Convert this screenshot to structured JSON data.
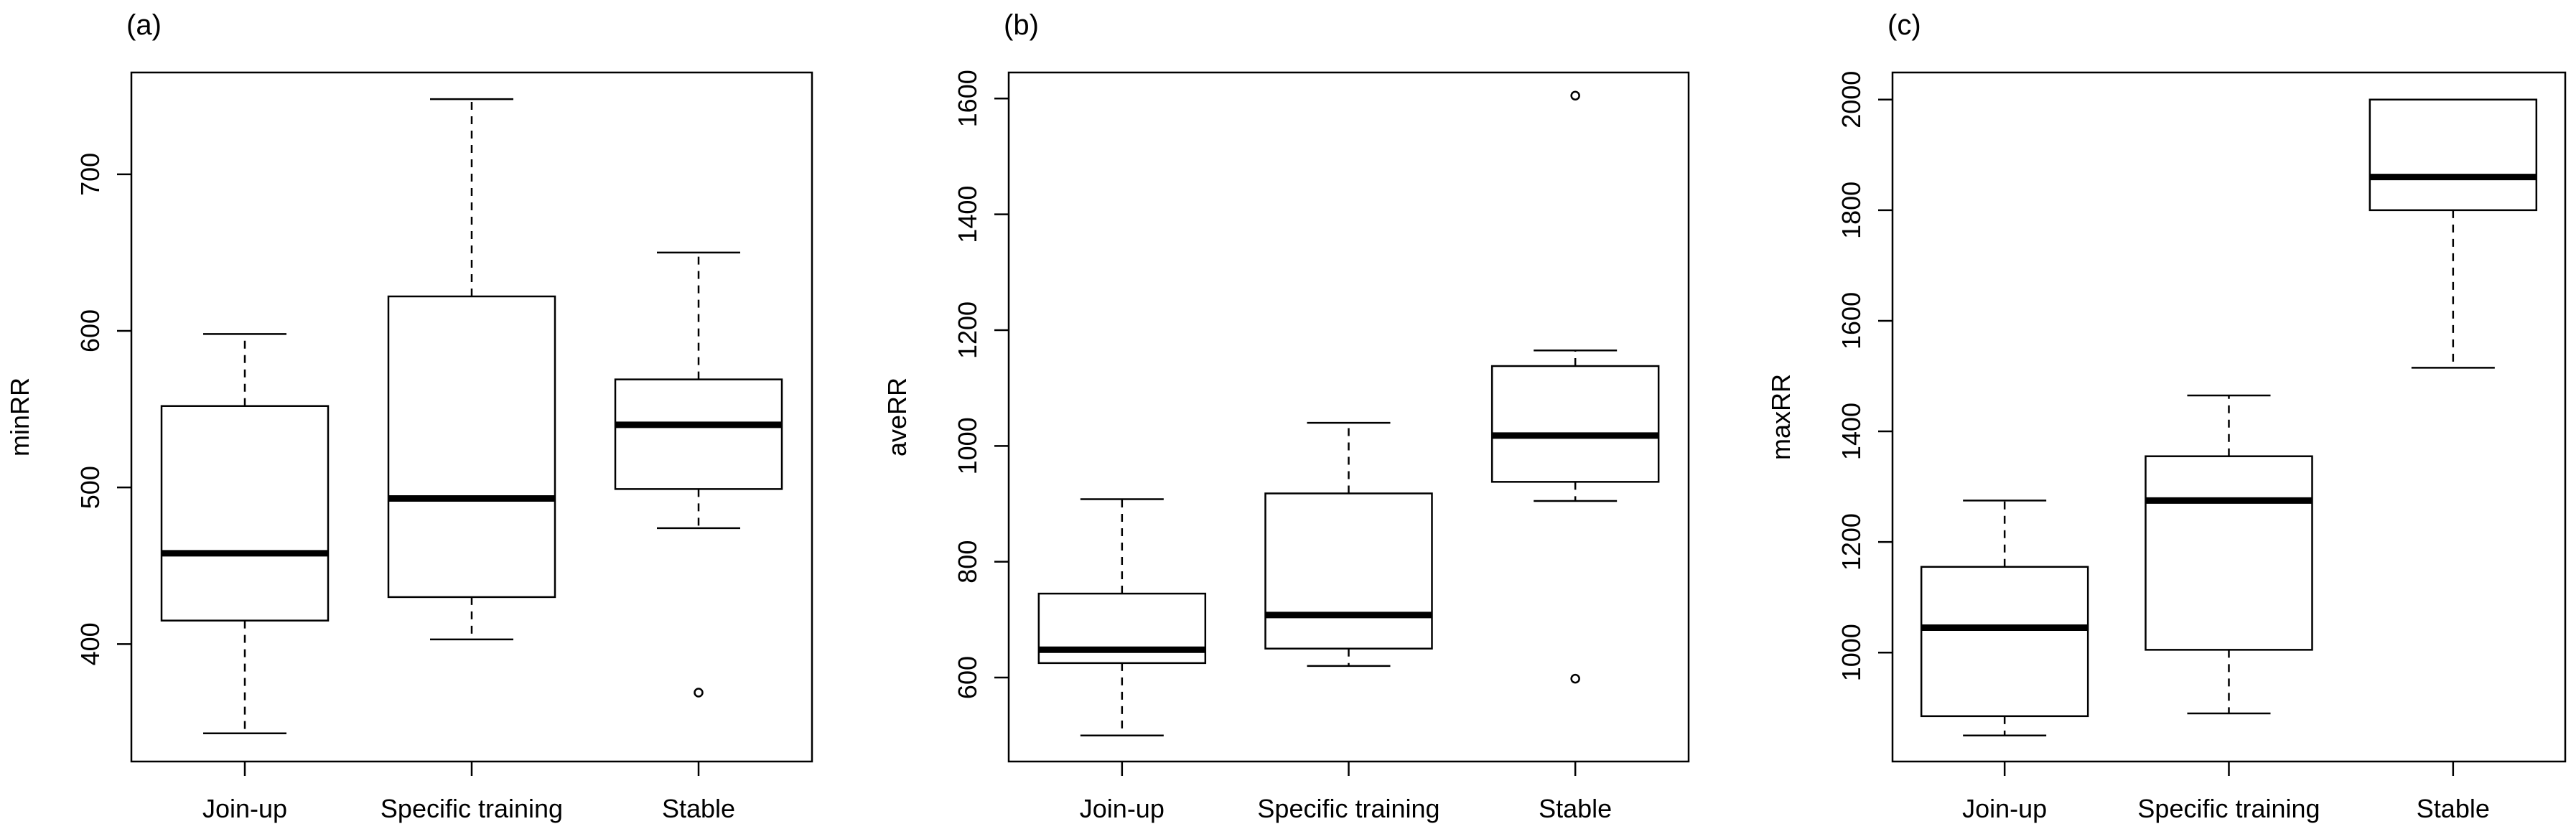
{
  "chart_data": [
    {
      "type": "boxplot",
      "panel_label": "(a)",
      "ylabel": "minRR",
      "xlabel": "",
      "categories": [
        "Join-up",
        "Specific training",
        "Stable"
      ],
      "ylim": [
        325,
        765
      ],
      "yticks": [
        400,
        500,
        600,
        700
      ],
      "boxes": [
        {
          "category": "Join-up",
          "whisker_low": 343,
          "q1": 415,
          "median": 458,
          "q3": 552,
          "whisker_high": 598,
          "outliers": []
        },
        {
          "category": "Specific training",
          "whisker_low": 403,
          "q1": 430,
          "median": 493,
          "q3": 622,
          "whisker_high": 748,
          "outliers": []
        },
        {
          "category": "Stable",
          "whisker_low": 474,
          "q1": 499,
          "median": 540,
          "q3": 569,
          "whisker_high": 650,
          "outliers": [
            369
          ]
        }
      ]
    },
    {
      "type": "boxplot",
      "panel_label": "(b)",
      "ylabel": "aveRR",
      "xlabel": "",
      "categories": [
        "Join-up",
        "Specific training",
        "Stable"
      ],
      "ylim": [
        455,
        1645
      ],
      "yticks": [
        600,
        800,
        1000,
        1200,
        1400,
        1600
      ],
      "boxes": [
        {
          "category": "Join-up",
          "whisker_low": 500,
          "q1": 625,
          "median": 648,
          "q3": 745,
          "whisker_high": 908,
          "outliers": []
        },
        {
          "category": "Specific training",
          "whisker_low": 620,
          "q1": 650,
          "median": 708,
          "q3": 918,
          "whisker_high": 1040,
          "outliers": []
        },
        {
          "category": "Stable",
          "whisker_low": 905,
          "q1": 938,
          "median": 1018,
          "q3": 1138,
          "whisker_high": 1165,
          "outliers": [
            598,
            1605
          ]
        }
      ]
    },
    {
      "type": "boxplot",
      "panel_label": "(c)",
      "ylabel": "maxRR",
      "xlabel": "",
      "categories": [
        "Join-up",
        "Specific training",
        "Stable"
      ],
      "ylim": [
        803,
        2049
      ],
      "yticks": [
        1000,
        1200,
        1400,
        1600,
        1800,
        2000
      ],
      "boxes": [
        {
          "category": "Join-up",
          "whisker_low": 850,
          "q1": 885,
          "median": 1045,
          "q3": 1155,
          "whisker_high": 1275,
          "outliers": []
        },
        {
          "category": "Specific training",
          "whisker_low": 890,
          "q1": 1005,
          "median": 1275,
          "q3": 1355,
          "whisker_high": 1465,
          "outliers": []
        },
        {
          "category": "Stable",
          "whisker_low": 1515,
          "q1": 1800,
          "median": 1860,
          "q3": 2000,
          "whisker_high": 2000,
          "outliers": []
        }
      ]
    }
  ]
}
